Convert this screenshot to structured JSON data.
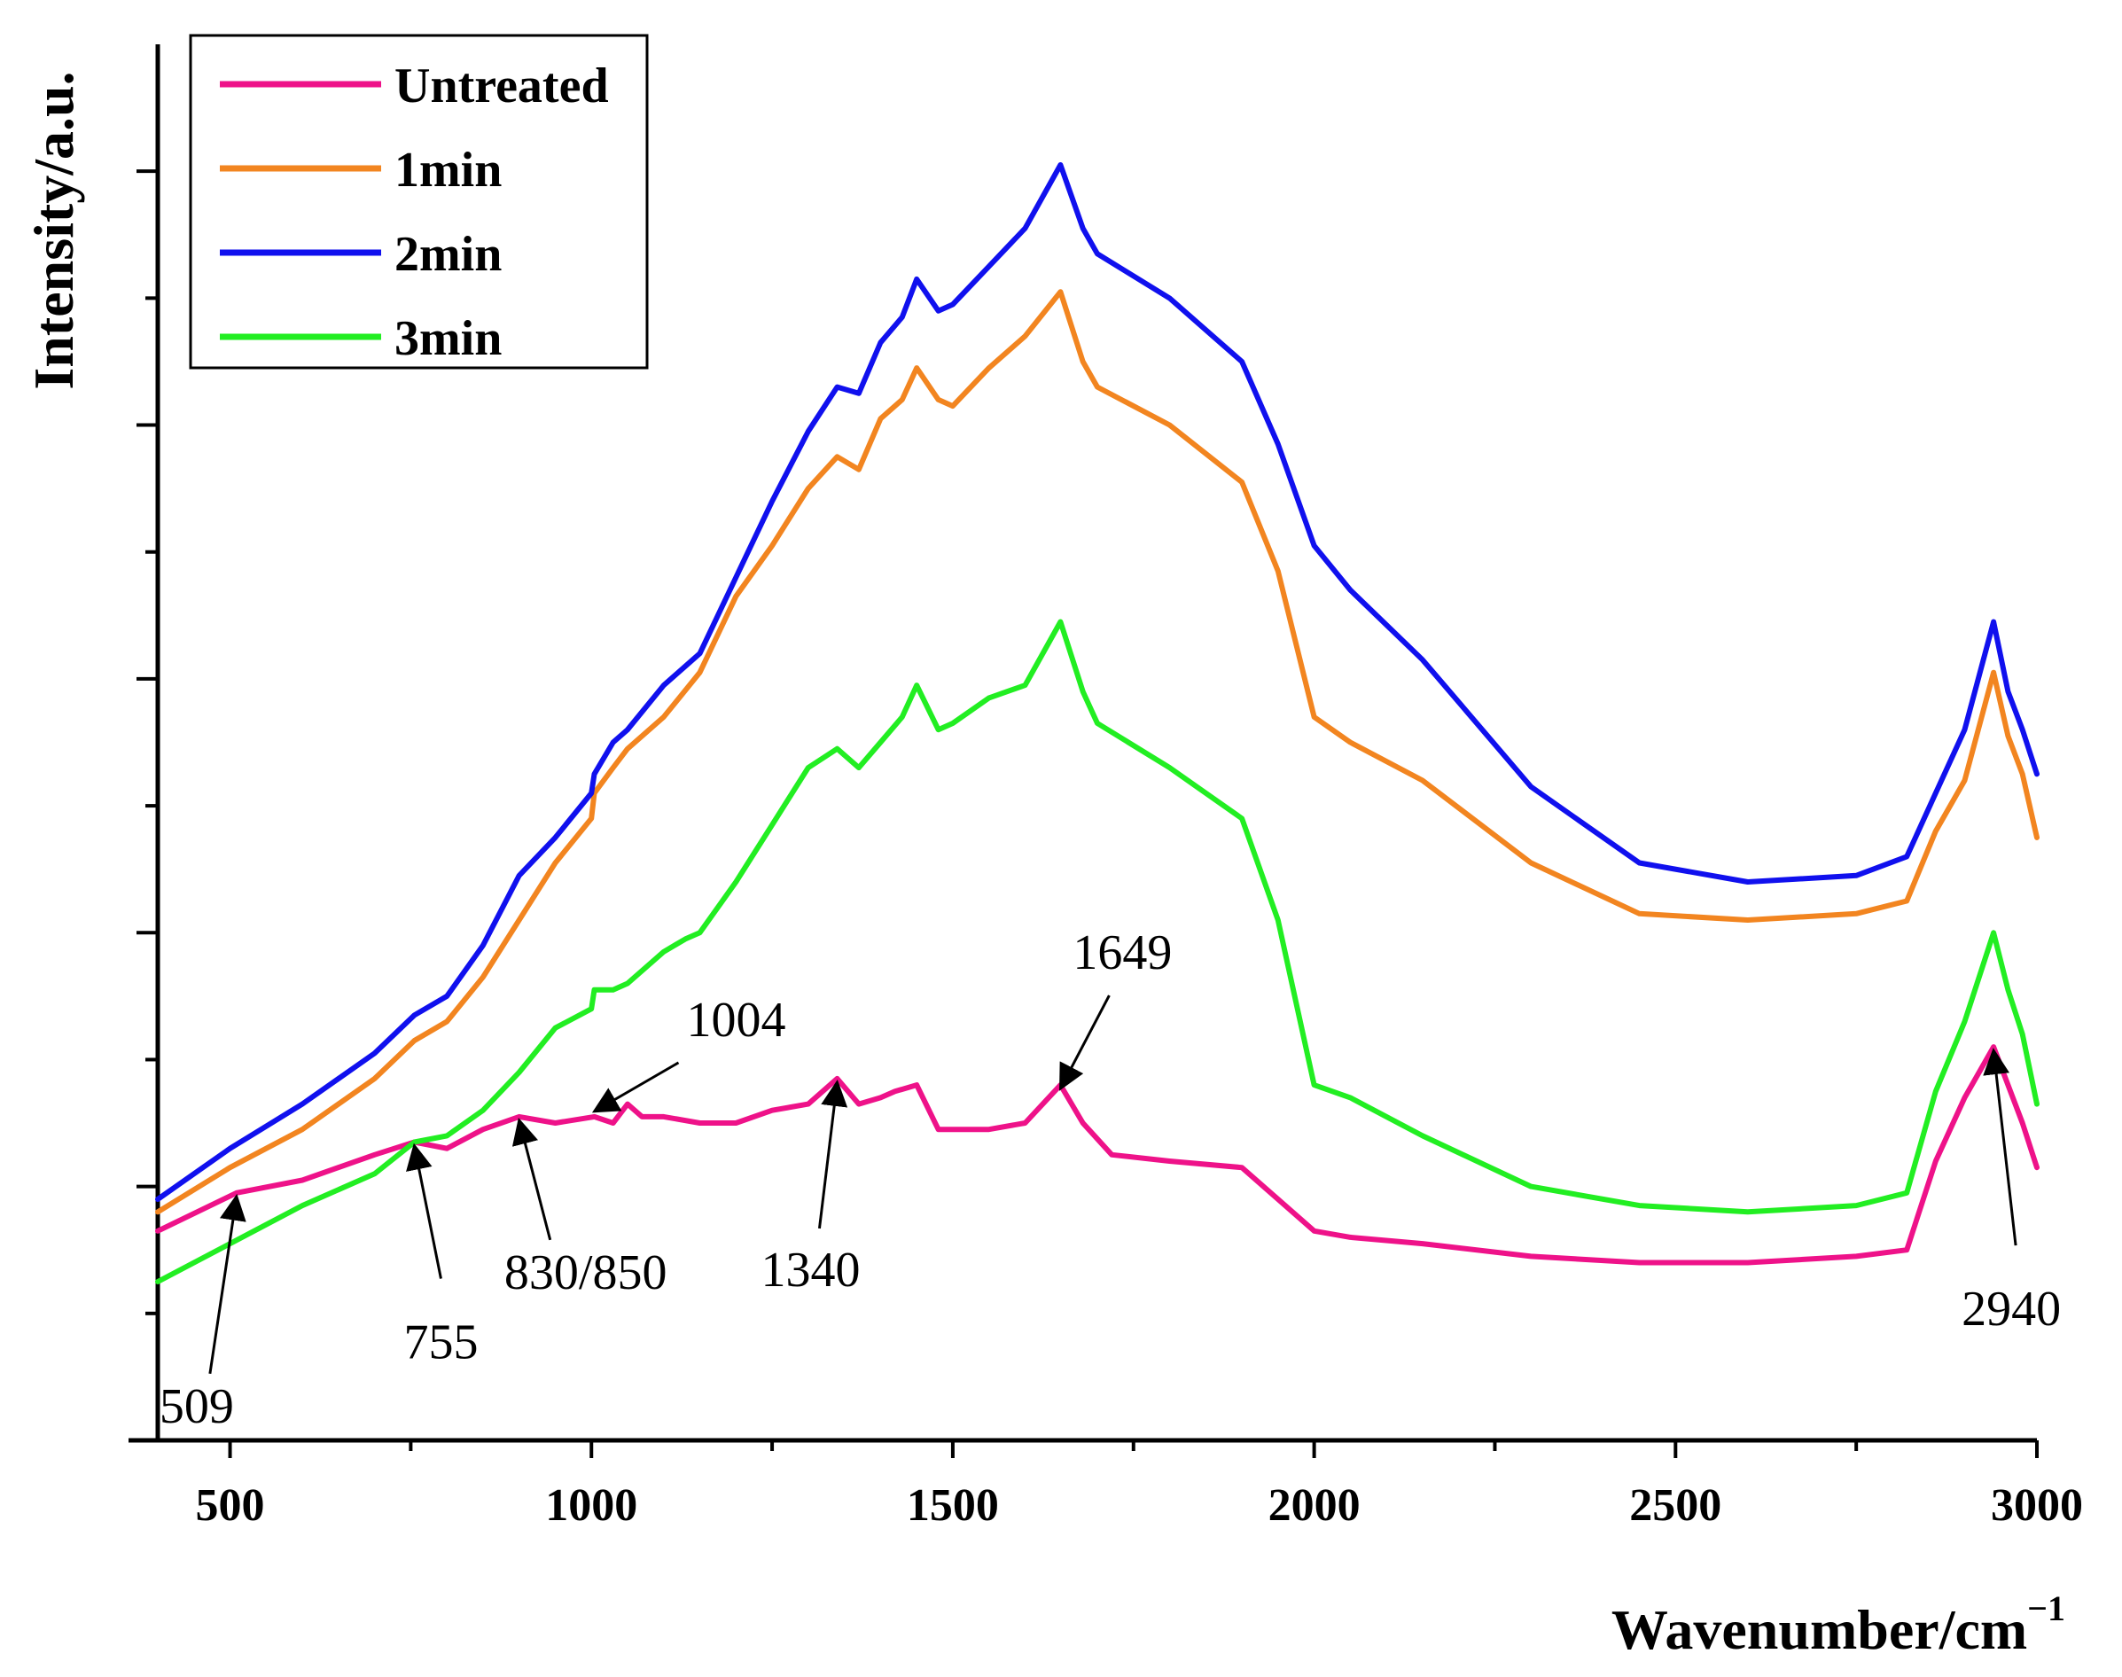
{
  "chart_data": {
    "type": "line",
    "title": "",
    "xlabel": "Wavenumber/cm",
    "xlabel_superscript": "−1",
    "ylabel": "Intensity/a.u.",
    "xlim": [
      400,
      3000
    ],
    "ylim": [
      0,
      110
    ],
    "x_ticks": [
      500,
      1000,
      1500,
      2000,
      2500,
      3000
    ],
    "x_tick_labels": [
      "500",
      "1000",
      "1500",
      "2000",
      "2500",
      "3000"
    ],
    "y_ticks": [
      10,
      20,
      30,
      40,
      50,
      60,
      70,
      80,
      90,
      100
    ],
    "grid": false,
    "legend_position": "top-left",
    "series": [
      {
        "name": "Untreated",
        "color": "#ee1289",
        "x": [
          400,
          509,
          600,
          700,
          755,
          800,
          850,
          900,
          950,
          1004,
          1030,
          1050,
          1070,
          1100,
          1150,
          1200,
          1250,
          1300,
          1340,
          1370,
          1400,
          1420,
          1450,
          1480,
          1500,
          1550,
          1600,
          1649,
          1680,
          1720,
          1800,
          1900,
          2000,
          2050,
          2150,
          2300,
          2450,
          2600,
          2750,
          2820,
          2860,
          2900,
          2940,
          2960,
          2980,
          3000
        ],
        "y": [
          16.5,
          19.5,
          20.5,
          22.5,
          23.5,
          23,
          24.5,
          25.5,
          25,
          25.5,
          25,
          26.5,
          25.5,
          25.5,
          25,
          25,
          26,
          26.5,
          28.5,
          26.5,
          27,
          27.5,
          28,
          24.5,
          24.5,
          24.5,
          25,
          28,
          25,
          22.5,
          22,
          21.5,
          16.5,
          16,
          15.5,
          14.5,
          14,
          14,
          14.5,
          15,
          22,
          27,
          31,
          28,
          25,
          21.5
        ]
      },
      {
        "name": "1min",
        "color": "#f28520",
        "x": [
          400,
          500,
          600,
          700,
          755,
          800,
          850,
          900,
          950,
          1000,
          1004,
          1030,
          1050,
          1100,
          1150,
          1200,
          1250,
          1300,
          1340,
          1370,
          1400,
          1430,
          1450,
          1480,
          1500,
          1550,
          1600,
          1649,
          1680,
          1700,
          1800,
          1900,
          1950,
          2000,
          2050,
          2150,
          2300,
          2450,
          2600,
          2750,
          2820,
          2860,
          2900,
          2940,
          2960,
          2980,
          3000
        ],
        "y": [
          18,
          21.5,
          24.5,
          28.5,
          31.5,
          33,
          36.5,
          41,
          45.5,
          49,
          51,
          53,
          54.5,
          57,
          60.5,
          66.5,
          70.5,
          75,
          77.5,
          76.5,
          80.5,
          82,
          84.5,
          82,
          81.5,
          84.5,
          87,
          90.5,
          85,
          83,
          80,
          75.5,
          68.5,
          57,
          55,
          52,
          45.5,
          41.5,
          41,
          41.5,
          42.5,
          48,
          52,
          60.5,
          55.5,
          52.5,
          47.5
        ]
      },
      {
        "name": "2min",
        "color": "#1010ee",
        "x": [
          400,
          500,
          600,
          700,
          755,
          800,
          850,
          900,
          950,
          1000,
          1004,
          1030,
          1050,
          1100,
          1130,
          1150,
          1200,
          1250,
          1300,
          1340,
          1370,
          1400,
          1430,
          1450,
          1480,
          1500,
          1550,
          1600,
          1649,
          1680,
          1700,
          1800,
          1900,
          1950,
          2000,
          2050,
          2150,
          2300,
          2450,
          2600,
          2750,
          2820,
          2860,
          2900,
          2940,
          2960,
          2980,
          3000
        ],
        "y": [
          19,
          23,
          26.5,
          30.5,
          33.5,
          35,
          39,
          44.5,
          47.5,
          51,
          52.5,
          55,
          56,
          59.5,
          61,
          62,
          68,
          74,
          79.5,
          83,
          82.5,
          86.5,
          88.5,
          91.5,
          89,
          89.5,
          92.5,
          95.5,
          100.5,
          95.5,
          93.5,
          90,
          85,
          78.5,
          70.5,
          67,
          61.5,
          51.5,
          45.5,
          44,
          44.5,
          46,
          51,
          56,
          64.5,
          59,
          56,
          52.5
        ]
      },
      {
        "name": "3min",
        "color": "#22ee22",
        "x": [
          400,
          500,
          600,
          700,
          755,
          800,
          850,
          900,
          950,
          1000,
          1004,
          1030,
          1050,
          1100,
          1130,
          1150,
          1200,
          1250,
          1300,
          1340,
          1370,
          1400,
          1430,
          1450,
          1480,
          1500,
          1550,
          1600,
          1649,
          1680,
          1700,
          1800,
          1900,
          1950,
          2000,
          2050,
          2150,
          2300,
          2450,
          2600,
          2750,
          2820,
          2860,
          2900,
          2940,
          2960,
          2980,
          3000
        ],
        "y": [
          12.5,
          15.5,
          18.5,
          21,
          23.5,
          24,
          26,
          29,
          32.5,
          34,
          35.5,
          35.5,
          36,
          38.5,
          39.5,
          40,
          44,
          48.5,
          53,
          54.5,
          53,
          55,
          57,
          59.5,
          56,
          56.5,
          58.5,
          59.5,
          64.5,
          59,
          56.5,
          53,
          49,
          41,
          28,
          27,
          24,
          20,
          18.5,
          18,
          18.5,
          19.5,
          27.5,
          33,
          40,
          35.5,
          32,
          26.5
        ]
      }
    ],
    "annotations": [
      {
        "text": "509",
        "x": 509
      },
      {
        "text": "755",
        "x": 755
      },
      {
        "text": "830/850",
        "x": 900
      },
      {
        "text": "1004",
        "x": 1004
      },
      {
        "text": "1340",
        "x": 1340
      },
      {
        "text": "1649",
        "x": 1649
      },
      {
        "text": "2940",
        "x": 2940
      }
    ]
  }
}
